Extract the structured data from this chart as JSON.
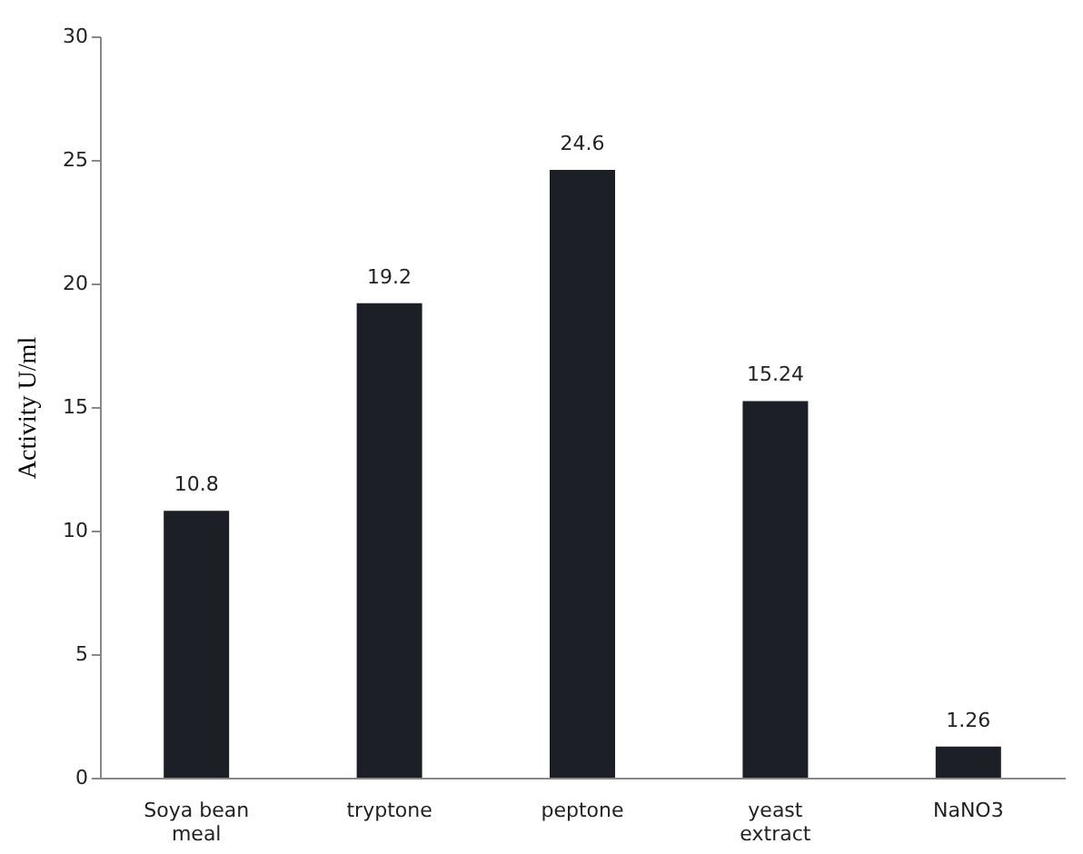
{
  "chart_data": {
    "type": "bar",
    "ylabel": "Activity U/ml",
    "categories": [
      "Soya bean meal",
      "tryptone",
      "peptone",
      "yeast extract",
      "NaNO3"
    ],
    "values": [
      10.8,
      19.2,
      24.6,
      15.24,
      1.26
    ],
    "color": "#1c1f26",
    "ylim": [
      0,
      30
    ],
    "yticks": [
      0,
      5,
      10,
      15,
      20,
      25,
      30
    ],
    "grid": false,
    "data_labels": true
  }
}
